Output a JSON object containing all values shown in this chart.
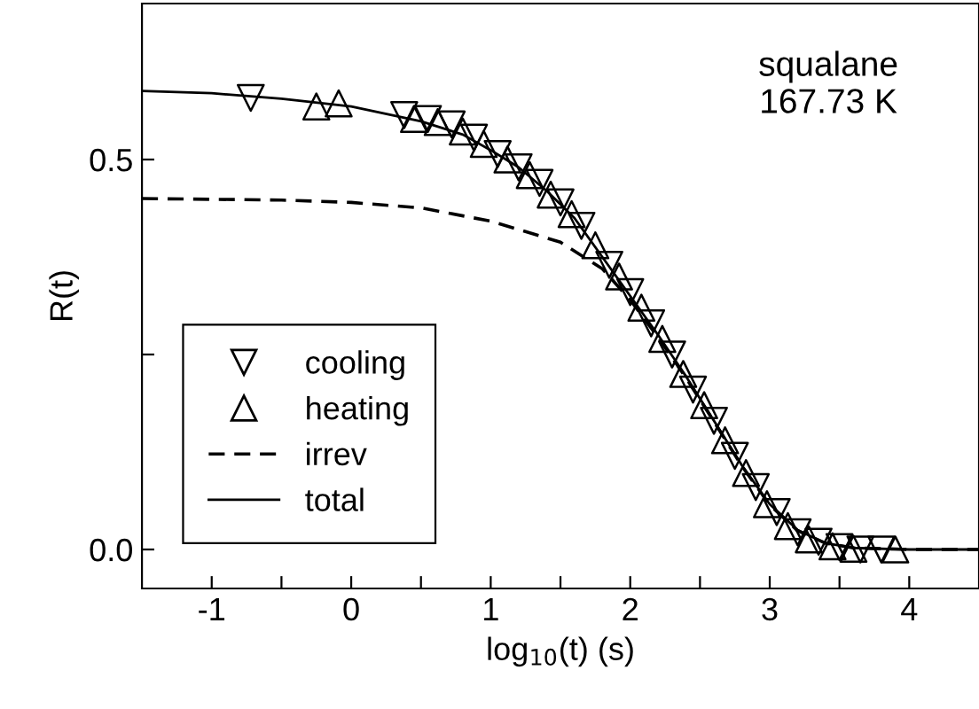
{
  "chart_data": {
    "type": "scatter",
    "xlabel": "log$_{10}$(t) (s)",
    "ylabel": "R(t)",
    "annotations": [
      "squalane\n167.73 K"
    ],
    "xlim": [
      -1.5,
      4.5
    ],
    "ylim": [
      -0.05,
      0.7
    ],
    "xticks": [
      -1,
      0,
      1,
      2,
      3,
      4,
      {
        "value": -0.5,
        "label": null
      },
      {
        "value": 0.5,
        "label": null
      },
      {
        "value": 1.5,
        "label": null
      },
      {
        "value": 2.5,
        "label": null
      },
      {
        "value": 3.5,
        "label": null
      }
    ],
    "yticks": [
      {
        "value": 0.0,
        "label": "0.0"
      },
      {
        "value": 0.5,
        "label": "0.5"
      },
      {
        "value": 0.25,
        "label": null
      }
    ],
    "grid": false,
    "legend": "bottom left",
    "series": [
      {
        "name": "cooling",
        "marker": "triangle_down",
        "color": "#000000",
        "x": [
          -0.72,
          0.38,
          0.55,
          0.72,
          0.88,
          1.05,
          1.2,
          1.35,
          1.5,
          1.65,
          1.85,
          2.0,
          2.15,
          2.3,
          2.45,
          2.6,
          2.75,
          2.9,
          3.05,
          3.2,
          3.35,
          3.5,
          3.65,
          3.8
        ],
        "values": [
          0.579,
          0.557,
          0.552,
          0.545,
          0.528,
          0.507,
          0.49,
          0.47,
          0.445,
          0.415,
          0.365,
          0.33,
          0.29,
          0.25,
          0.205,
          0.165,
          0.12,
          0.08,
          0.048,
          0.022,
          0.01,
          0.003,
          0.0,
          0.0
        ]
      },
      {
        "name": "heating",
        "marker": "triangle",
        "color": "#000000",
        "x": [
          -0.25,
          -0.09,
          0.45,
          0.62,
          0.8,
          0.95,
          1.12,
          1.28,
          1.43,
          1.58,
          1.75,
          1.92,
          2.08,
          2.23,
          2.38,
          2.53,
          2.68,
          2.83,
          2.98,
          3.13,
          3.28,
          3.45,
          3.6,
          3.9
        ],
        "values": [
          0.568,
          0.572,
          0.552,
          0.548,
          0.536,
          0.52,
          0.5,
          0.48,
          0.455,
          0.43,
          0.39,
          0.35,
          0.31,
          0.27,
          0.225,
          0.185,
          0.14,
          0.098,
          0.058,
          0.03,
          0.013,
          0.004,
          0.001,
          0.0
        ]
      },
      {
        "name": "irrev",
        "type": "line",
        "line_style": "dashed",
        "color": "#000000",
        "x": [
          -1.5,
          -1,
          -0.5,
          0,
          0.5,
          1.0,
          1.5,
          1.8,
          2.0,
          2.2,
          2.4,
          2.6,
          2.8,
          3.0,
          3.2,
          3.4,
          3.6,
          4.0,
          4.5
        ],
        "values": [
          0.45,
          0.449,
          0.448,
          0.445,
          0.438,
          0.421,
          0.394,
          0.36,
          0.32,
          0.272,
          0.22,
          0.164,
          0.107,
          0.057,
          0.024,
          0.008,
          0.002,
          0.0,
          0.0
        ]
      },
      {
        "name": "total",
        "type": "line",
        "line_style": "solid",
        "color": "#000000",
        "x": [
          -1.5,
          -1,
          -0.5,
          0,
          0.5,
          0.8,
          1.0,
          1.2,
          1.4,
          1.6,
          1.8,
          2.0,
          2.2,
          2.4,
          2.6,
          2.8,
          3.0,
          3.2,
          3.4,
          3.6,
          4.0,
          4.5
        ],
        "values": [
          0.588,
          0.585,
          0.578,
          0.568,
          0.549,
          0.532,
          0.512,
          0.49,
          0.46,
          0.425,
          0.375,
          0.325,
          0.275,
          0.222,
          0.165,
          0.108,
          0.058,
          0.025,
          0.008,
          0.002,
          0.0,
          0.0
        ]
      }
    ]
  }
}
